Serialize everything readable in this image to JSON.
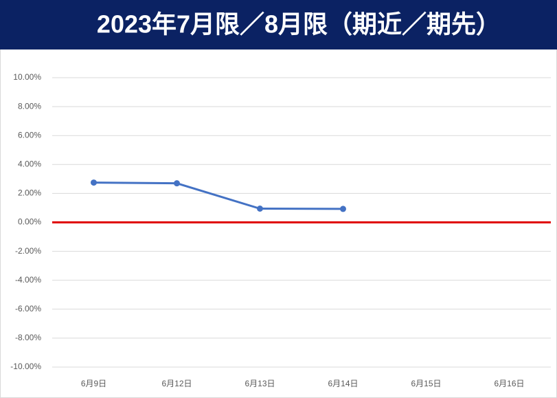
{
  "chart_data": {
    "type": "line",
    "title": "2023年7月限／8月限（期近／期先）",
    "categories": [
      "6月9日",
      "6月12日",
      "6月13日",
      "6月14日",
      "6月15日",
      "6月16日"
    ],
    "values": [
      2.75,
      2.7,
      0.95,
      0.93,
      null,
      null
    ],
    "color": "#4472c4",
    "zero_line_color": "#e00000",
    "ylim": [
      -10,
      10
    ],
    "yticks": [
      {
        "value": -10,
        "label": "-10.00%"
      },
      {
        "value": -8,
        "label": "-8.00%"
      },
      {
        "value": -6,
        "label": "-6.00%"
      },
      {
        "value": -4,
        "label": "-4.00%"
      },
      {
        "value": -2,
        "label": "-2.00%"
      },
      {
        "value": 0,
        "label": "0.00%"
      },
      {
        "value": 2,
        "label": "2.00%"
      },
      {
        "value": 4,
        "label": "4.00%"
      },
      {
        "value": 6,
        "label": "6.00%"
      },
      {
        "value": 8,
        "label": "8.00%"
      },
      {
        "value": 10,
        "label": "10.00%"
      }
    ],
    "grid": true
  }
}
